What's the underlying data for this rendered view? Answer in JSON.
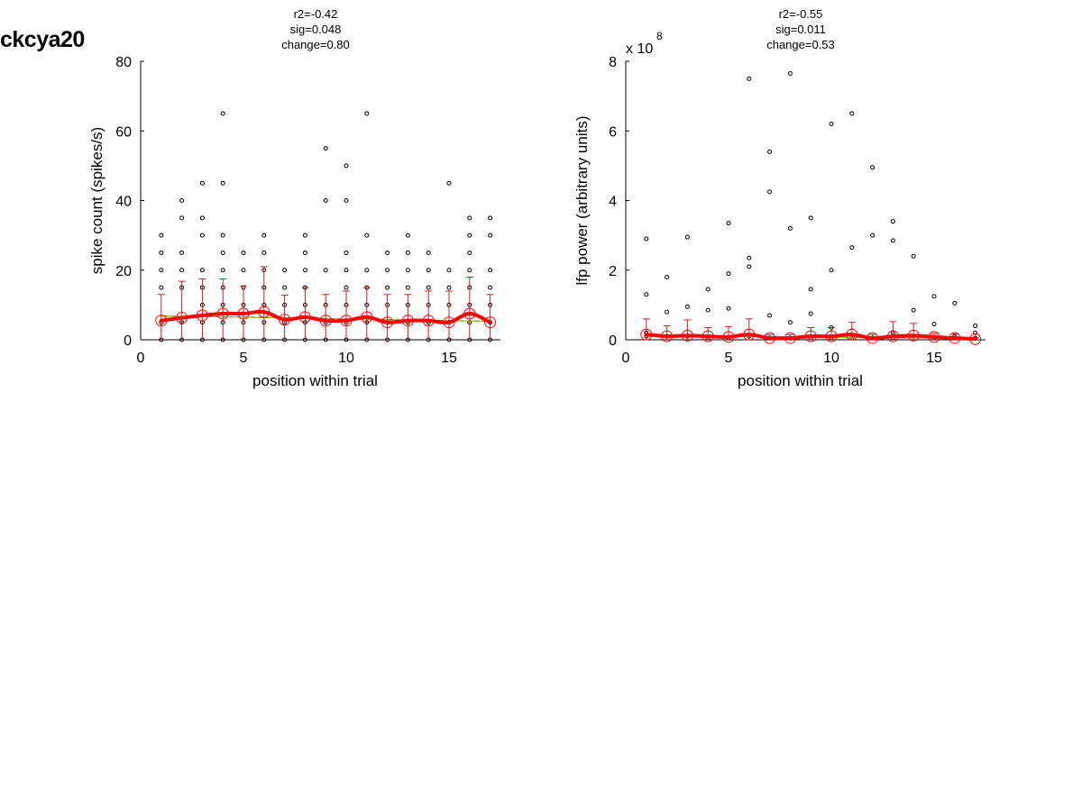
{
  "figure": {
    "title": "ckcya20"
  },
  "chart_data": [
    {
      "type": "scatter",
      "title_lines": [
        "r2=-0.42",
        "sig=0.048",
        "change=0.80"
      ],
      "xlabel": "position within trial",
      "ylabel": "spike count (spikes/s)",
      "exponent_label": "",
      "xlim": [
        0,
        17.5
      ],
      "ylim": [
        0,
        80
      ],
      "xticks": [
        0,
        5,
        10,
        15
      ],
      "yticks": [
        0,
        20,
        40,
        60,
        80
      ],
      "grid": false,
      "legend": "none",
      "colors": {
        "points": "#000000",
        "mean": "#ff0000",
        "errorbar": "#cc2020",
        "fit": "#3a9a3a",
        "fit_dash": "#c8c800"
      },
      "series": [
        {
          "kind": "trial_points",
          "x": [
            1,
            1,
            1,
            1,
            1,
            1,
            2,
            2,
            2,
            2,
            2,
            2,
            2,
            3,
            3,
            3,
            3,
            3,
            3,
            3,
            3,
            4,
            4,
            4,
            4,
            4,
            4,
            4,
            4,
            4,
            5,
            5,
            5,
            5,
            5,
            5,
            6,
            6,
            6,
            6,
            6,
            6,
            6,
            7,
            7,
            7,
            7,
            7,
            8,
            8,
            8,
            8,
            8,
            8,
            8,
            9,
            9,
            9,
            9,
            9,
            9,
            10,
            10,
            10,
            10,
            10,
            10,
            10,
            10,
            11,
            11,
            11,
            11,
            11,
            11,
            11,
            12,
            12,
            12,
            12,
            12,
            12,
            13,
            13,
            13,
            13,
            13,
            13,
            13,
            14,
            14,
            14,
            14,
            14,
            14,
            15,
            15,
            15,
            15,
            15,
            15,
            16,
            16,
            16,
            16,
            16,
            16,
            16,
            16,
            17,
            17,
            17,
            17,
            17,
            17,
            17
          ],
          "y": [
            0,
            5,
            15,
            20,
            25,
            30,
            0,
            5,
            15,
            20,
            25,
            35,
            40,
            0,
            5,
            10,
            15,
            20,
            30,
            35,
            45,
            0,
            5,
            10,
            15,
            20,
            25,
            30,
            45,
            65,
            0,
            5,
            10,
            15,
            20,
            25,
            0,
            5,
            10,
            15,
            20,
            25,
            30,
            0,
            5,
            10,
            15,
            20,
            0,
            5,
            10,
            15,
            20,
            25,
            30,
            0,
            5,
            10,
            20,
            40,
            55,
            0,
            5,
            10,
            15,
            20,
            25,
            40,
            50,
            0,
            5,
            10,
            15,
            20,
            30,
            65,
            0,
            5,
            10,
            15,
            20,
            25,
            0,
            5,
            10,
            15,
            20,
            25,
            30,
            0,
            5,
            10,
            15,
            20,
            25,
            0,
            5,
            10,
            15,
            20,
            45,
            0,
            5,
            10,
            15,
            20,
            25,
            30,
            35,
            0,
            5,
            10,
            15,
            20,
            30,
            35
          ]
        },
        {
          "kind": "mean",
          "name": "",
          "x": [
            1,
            2,
            3,
            4,
            5,
            6,
            7,
            8,
            9,
            10,
            11,
            12,
            13,
            14,
            15,
            16,
            17
          ],
          "y": [
            5.5,
            6.3,
            7.0,
            7.5,
            7.5,
            8.0,
            5.8,
            6.5,
            5.5,
            5.5,
            6.5,
            5.0,
            5.5,
            5.5,
            5.0,
            7.5,
            5.0
          ],
          "err": [
            7.5,
            10.5,
            10.5,
            10.0,
            8.0,
            13.0,
            7.0,
            8.5,
            7.5,
            8.5,
            8.5,
            8.0,
            7.5,
            8.5,
            9.0,
            10.5,
            8.0
          ]
        },
        {
          "kind": "fit",
          "x": [
            1,
            2,
            3,
            4,
            5,
            6,
            7,
            8,
            9,
            10,
            11,
            12,
            13,
            14,
            15,
            16,
            17
          ],
          "y": [
            6.8,
            6.7,
            6.7,
            6.6,
            6.5,
            6.4,
            6.3,
            6.2,
            6.1,
            6.0,
            5.9,
            5.8,
            5.7,
            5.6,
            5.5,
            5.4,
            5.3
          ]
        }
      ]
    },
    {
      "type": "scatter",
      "title_lines": [
        "r2=-0.55",
        "sig=0.011",
        "change=0.53"
      ],
      "xlabel": "position within trial",
      "ylabel": "lfp power (arbitrary units)",
      "exponent_label": "x 10",
      "exponent_power": "8",
      "xlim": [
        0,
        17.5
      ],
      "ylim": [
        0,
        8
      ],
      "xticks": [
        0,
        5,
        10,
        15
      ],
      "yticks": [
        0,
        2,
        4,
        6,
        8
      ],
      "grid": false,
      "legend": "none",
      "colors": {
        "points": "#000000",
        "mean": "#ff0000",
        "errorbar": "#cc2020",
        "fit": "#3a9a3a",
        "fit_dash": "#c8c800"
      },
      "series": [
        {
          "kind": "trial_points",
          "x": [
            1,
            1,
            1,
            1,
            2,
            2,
            2,
            3,
            3,
            3,
            4,
            4,
            4,
            5,
            5,
            5,
            5,
            6,
            6,
            6,
            6,
            7,
            7,
            7,
            7,
            8,
            8,
            8,
            8,
            9,
            9,
            9,
            9,
            10,
            10,
            10,
            10,
            11,
            11,
            11,
            12,
            12,
            12,
            13,
            13,
            13,
            13,
            14,
            14,
            14,
            15,
            15,
            15,
            16,
            16,
            16,
            17,
            17,
            17
          ],
          "y": [
            2.9,
            1.3,
            0.2,
            0.1,
            1.8,
            0.8,
            0.1,
            2.95,
            0.95,
            0.1,
            1.45,
            0.85,
            0.05,
            3.35,
            1.9,
            0.9,
            0.05,
            7.5,
            2.35,
            2.1,
            0.1,
            5.4,
            4.25,
            0.7,
            0.05,
            7.65,
            3.2,
            0.5,
            0.05,
            3.5,
            1.45,
            0.75,
            0.05,
            6.2,
            2.0,
            0.35,
            0.05,
            6.5,
            2.65,
            0.05,
            4.95,
            3.0,
            0.05,
            3.4,
            2.85,
            0.2,
            0.05,
            2.4,
            0.85,
            0.1,
            1.25,
            0.45,
            0.05,
            1.05,
            0.1,
            0.05,
            0.4,
            0.2,
            0.05
          ]
        },
        {
          "kind": "mean",
          "name": "",
          "x": [
            1,
            2,
            3,
            4,
            5,
            6,
            7,
            8,
            9,
            10,
            11,
            12,
            13,
            14,
            15,
            16,
            17
          ],
          "y": [
            0.15,
            0.1,
            0.12,
            0.1,
            0.08,
            0.15,
            0.05,
            0.05,
            0.1,
            0.1,
            0.15,
            0.05,
            0.1,
            0.12,
            0.08,
            0.05,
            0.02
          ],
          "err": [
            0.45,
            0.3,
            0.45,
            0.25,
            0.3,
            0.45,
            0.1,
            0.1,
            0.25,
            0.25,
            0.35,
            0.1,
            0.42,
            0.35,
            0.1,
            0.12,
            0.05
          ]
        },
        {
          "kind": "fit",
          "x": [
            1,
            2,
            3,
            4,
            5,
            6,
            7,
            8,
            9,
            10,
            11,
            12,
            13,
            14,
            15,
            16,
            17
          ],
          "y": [
            0.12,
            0.115,
            0.11,
            0.105,
            0.1,
            0.095,
            0.09,
            0.085,
            0.08,
            0.075,
            0.07,
            0.065,
            0.06,
            0.055,
            0.05,
            0.045,
            0.04
          ]
        }
      ]
    }
  ]
}
